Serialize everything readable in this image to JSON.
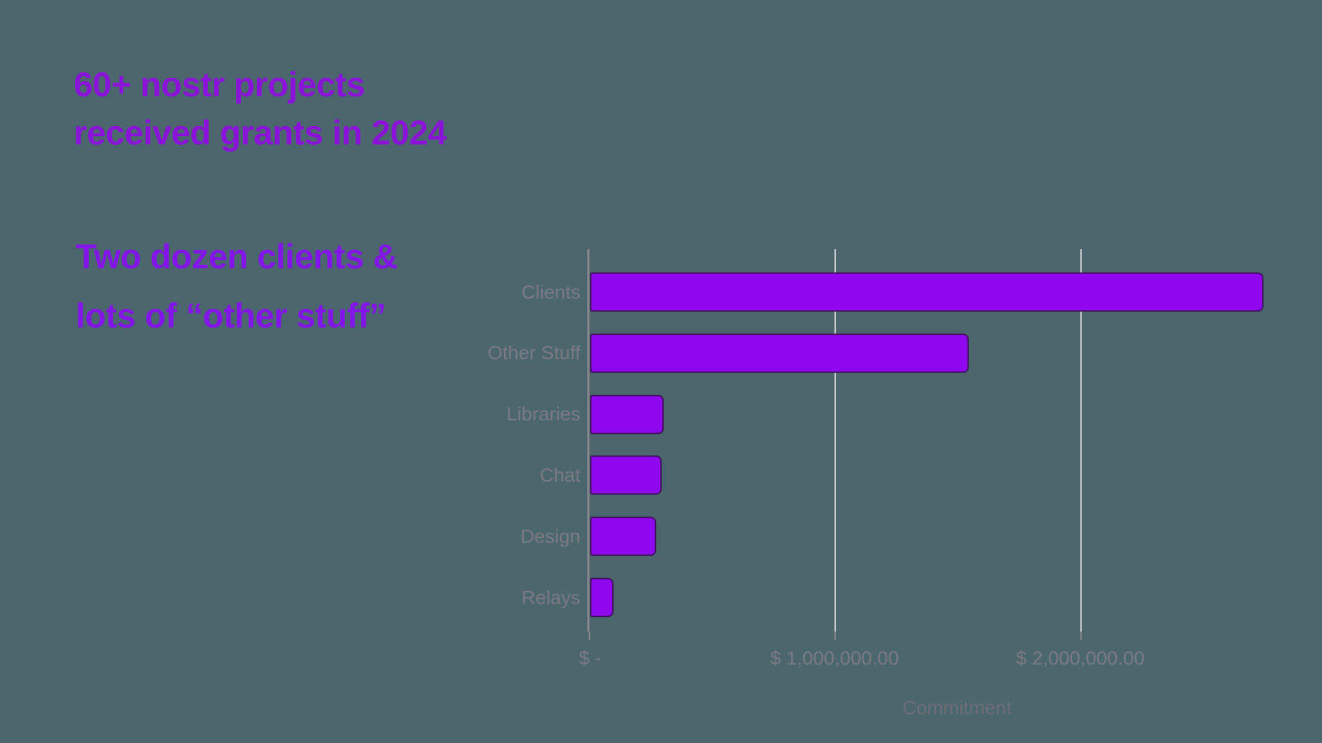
{
  "background_color": "#4C666E",
  "title": {
    "line1": "60+ nostr projects",
    "line2": "received grants in 2024",
    "color": "#8A12DA"
  },
  "subtitle": {
    "line1": "Two dozen clients &",
    "line2": "lots of “other stuff”",
    "color": "#8315EC"
  },
  "chart_data": {
    "type": "bar",
    "orientation": "horizontal",
    "categories": [
      "Clients",
      "Other Stuff",
      "Libraries",
      "Chat",
      "Design",
      "Relays"
    ],
    "values": [
      2740000,
      1540000,
      300000,
      290000,
      270000,
      95000
    ],
    "values_unit": "USD",
    "title": "",
    "xlabel": "Commitment",
    "ylabel": "",
    "xlim": [
      0,
      2900000
    ],
    "x_ticks": [
      0,
      1000000,
      2000000
    ],
    "x_tick_labels": [
      "$ -",
      "$ 1,000,000.00",
      "$ 2,000,000.00"
    ],
    "grid": "vertical gridlines on",
    "legend": "none",
    "bar_color": "#8F08F0",
    "bar_border_color": "#3F0C5E",
    "category_label_color": "#7B7A85",
    "tick_label_color": "#7B7A85",
    "axis_title_color": "#6E6E78",
    "axis_line_color": "#8A8A8A",
    "gridline_color": "#DCDCDC"
  }
}
